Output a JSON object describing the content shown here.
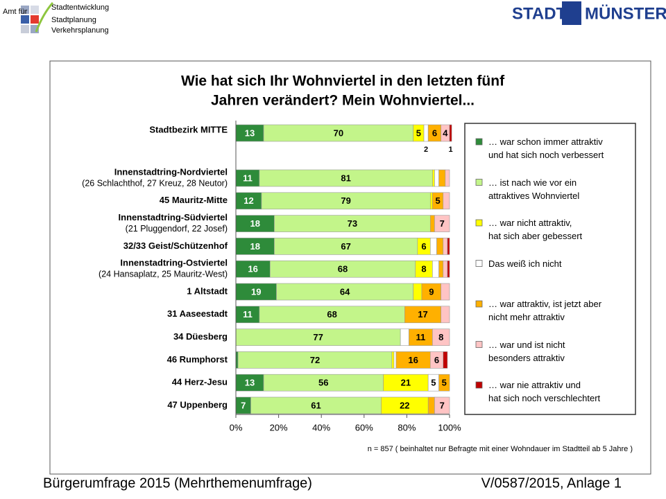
{
  "header": {
    "office": [
      "Amt für",
      "Stadtentwicklung",
      "Stadtplanung",
      "Verkehrsplanung"
    ],
    "city": [
      "STADT",
      "MÜNSTER"
    ]
  },
  "footer": {
    "left": "Bürgerumfrage 2015 (Mehrthemenumfrage)",
    "right": "V/0587/2015, Anlage 1"
  },
  "chart_data": {
    "type": "stacked_barh",
    "title": [
      "Wie hat sich Ihr Wohnviertel in den letzten fünf",
      "Jahren verändert? Mein Wohnviertel..."
    ],
    "note": "n = 857 ( beinhaltet nur Befragte mit einer Wohndauer im Stadtteil ab 5 Jahre )",
    "categories": [
      "Stadtbezirk MITTE",
      "Innenstadtring-Nordviertel",
      "45 Mauritz-Mitte",
      "Innenstadtring-Südviertel",
      "32/33 Geist/Schützenhof",
      "Innenstadtring-Ostviertel",
      "1 Altstadt",
      "31 Aaseestadt",
      "34 Düesberg",
      "46 Rumphorst",
      "44 Herz-Jesu",
      "47 Uppenberg"
    ],
    "category_sublabels": [
      null,
      "(26 Schlachthof, 27 Kreuz, 28 Neutor)",
      null,
      "(21 Pluggendorf, 22 Josef)",
      null,
      "(24 Hansaplatz, 25 Mauritz-West)",
      null,
      null,
      null,
      null,
      null,
      null
    ],
    "series": [
      {
        "name": "… war schon immer attraktiv\nund hat sich noch verbessert",
        "color": "#2e8b3a",
        "values": [
          13,
          11,
          12,
          18,
          18,
          16,
          19,
          11,
          0,
          1,
          13,
          7
        ],
        "value_labels": [
          "13",
          "11",
          "12",
          "18",
          "18",
          "16",
          "19",
          "11",
          null,
          null,
          "13",
          "7"
        ]
      },
      {
        "name": "… ist nach wie vor ein\nattraktives Wohnviertel",
        "color": "#c3f58a",
        "values": [
          70,
          81,
          79,
          73,
          67,
          68,
          64,
          68,
          77,
          72,
          56,
          61
        ],
        "value_labels": [
          "70",
          "81",
          "79",
          "73",
          "67",
          "68",
          "64",
          "68",
          "77",
          "72",
          "56",
          "61"
        ]
      },
      {
        "name": "… war nicht attraktiv,\nhat sich aber gebessert",
        "color": "#ffff00",
        "values": [
          5,
          1,
          1,
          0,
          6,
          8,
          4,
          0,
          0,
          1,
          21,
          22
        ],
        "value_labels": [
          "5",
          null,
          null,
          null,
          "6",
          "8",
          null,
          null,
          null,
          null,
          "21",
          "22"
        ]
      },
      {
        "name": "Das weiß ich nicht",
        "color": "#ffffff",
        "values": [
          2,
          2,
          0,
          0,
          3,
          3,
          0,
          0,
          4,
          1,
          5,
          0
        ],
        "value_labels": [
          "2",
          null,
          null,
          null,
          null,
          null,
          null,
          null,
          null,
          null,
          "5",
          null
        ]
      },
      {
        "name": "… war attraktiv, ist jetzt aber\nnicht mehr attraktiv",
        "color": "#ffb000",
        "values": [
          6,
          3,
          5,
          2,
          3,
          2,
          9,
          17,
          11,
          16,
          5,
          3
        ],
        "value_labels": [
          "6",
          null,
          "5",
          null,
          null,
          null,
          "9",
          "17",
          "11",
          "16",
          "5",
          null
        ]
      },
      {
        "name": "… war und ist nicht\nbesonders attraktiv",
        "color": "#ffc4c4",
        "values": [
          4,
          2,
          3,
          7,
          2,
          2,
          4,
          4,
          8,
          6,
          0,
          7
        ],
        "value_labels": [
          "4",
          null,
          null,
          "7",
          null,
          null,
          null,
          null,
          "8",
          "6",
          null,
          "7"
        ]
      },
      {
        "name": "… war nie attraktiv und\nhat sich noch verschlechtert",
        "color": "#c00000",
        "values": [
          1,
          0,
          0,
          0,
          1,
          1,
          0,
          0,
          0,
          2,
          0,
          0
        ],
        "value_labels": [
          "1",
          null,
          null,
          null,
          null,
          null,
          null,
          null,
          null,
          null,
          null,
          null
        ]
      }
    ],
    "xlim": [
      0,
      100
    ],
    "xticks": [
      {
        "value": 0,
        "label": "0%"
      },
      {
        "value": 20,
        "label": "20%"
      },
      {
        "value": 40,
        "label": "40%"
      },
      {
        "value": 60,
        "label": "60%"
      },
      {
        "value": 80,
        "label": "80%"
      },
      {
        "value": 100,
        "label": "100%"
      }
    ],
    "legend": "right"
  }
}
